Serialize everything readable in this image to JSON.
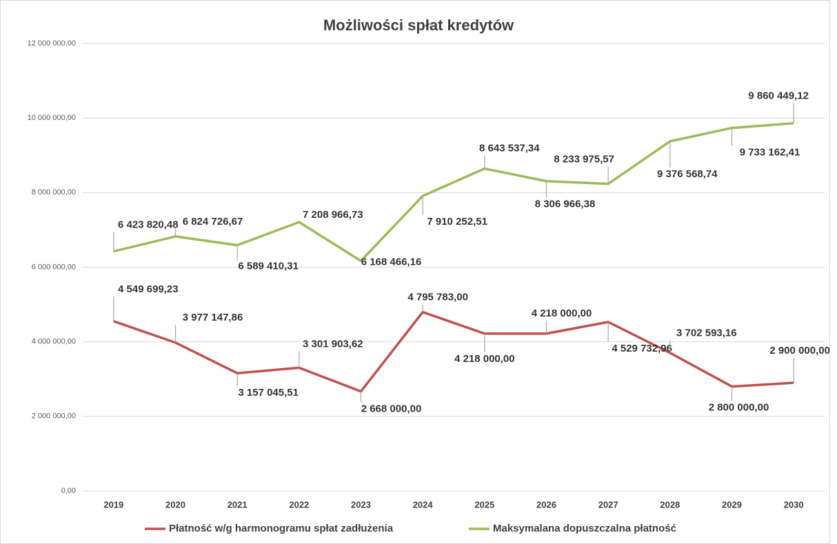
{
  "chart_data": {
    "type": "line",
    "title": "Możliwości spłat kredytów",
    "categories": [
      "2019",
      "2020",
      "2021",
      "2022",
      "2023",
      "2024",
      "2025",
      "2026",
      "2027",
      "2028",
      "2029",
      "2030"
    ],
    "series": [
      {
        "name": "Płatność w/g harmonogramu spłat zadłużenia",
        "color": "#c0504d",
        "values": [
          4549699.23,
          3977147.86,
          3157045.51,
          3301903.62,
          2668000.0,
          4795783.0,
          4218000.0,
          4218000.0,
          4529732.96,
          3702593.16,
          2800000.0,
          2900000.0
        ],
        "value_labels": [
          "4 549 699,23",
          "3 977 147,86",
          "3 157 045,51",
          "3 301 903,62",
          "2 668 000,00",
          "4 795 783,00",
          "4 218 000,00",
          "4 218 000,00",
          "4 529 732,96",
          "3 702 593,16",
          "2 800 000,00",
          "2 900 000,00"
        ]
      },
      {
        "name": "Maksymalana dopuszczalna płatność",
        "color": "#9bbb59",
        "values": [
          6423820.48,
          6824726.67,
          6589410.31,
          7208966.73,
          6168466.16,
          7910252.51,
          8643537.34,
          8306966.38,
          8233975.57,
          9376568.74,
          9733162.41,
          9860449.12
        ],
        "value_labels": [
          "6 423 820,48",
          "6 824 726,67",
          "6 589 410,31",
          "7 208 966,73",
          "6 168 466,16",
          "7 910 252,51",
          "8 643 537,34",
          "8 306 966,38",
          "8 233 975,57",
          "9 376 568,74",
          "9 733 162,41",
          "9 860 449,12"
        ]
      }
    ],
    "ylim": [
      0,
      12000000
    ],
    "yticks": [
      {
        "value": 0,
        "label": "0,00"
      },
      {
        "value": 2000000,
        "label": "2 000 000,00"
      },
      {
        "value": 4000000,
        "label": "4 000 000,00"
      },
      {
        "value": 6000000,
        "label": "6 000 000,00"
      },
      {
        "value": 8000000,
        "label": "8 000 000,00"
      },
      {
        "value": 10000000,
        "label": "10 000 000,00"
      },
      {
        "value": 12000000,
        "label": "12 000 000,00"
      }
    ],
    "grid": true,
    "legend": "bottom"
  }
}
